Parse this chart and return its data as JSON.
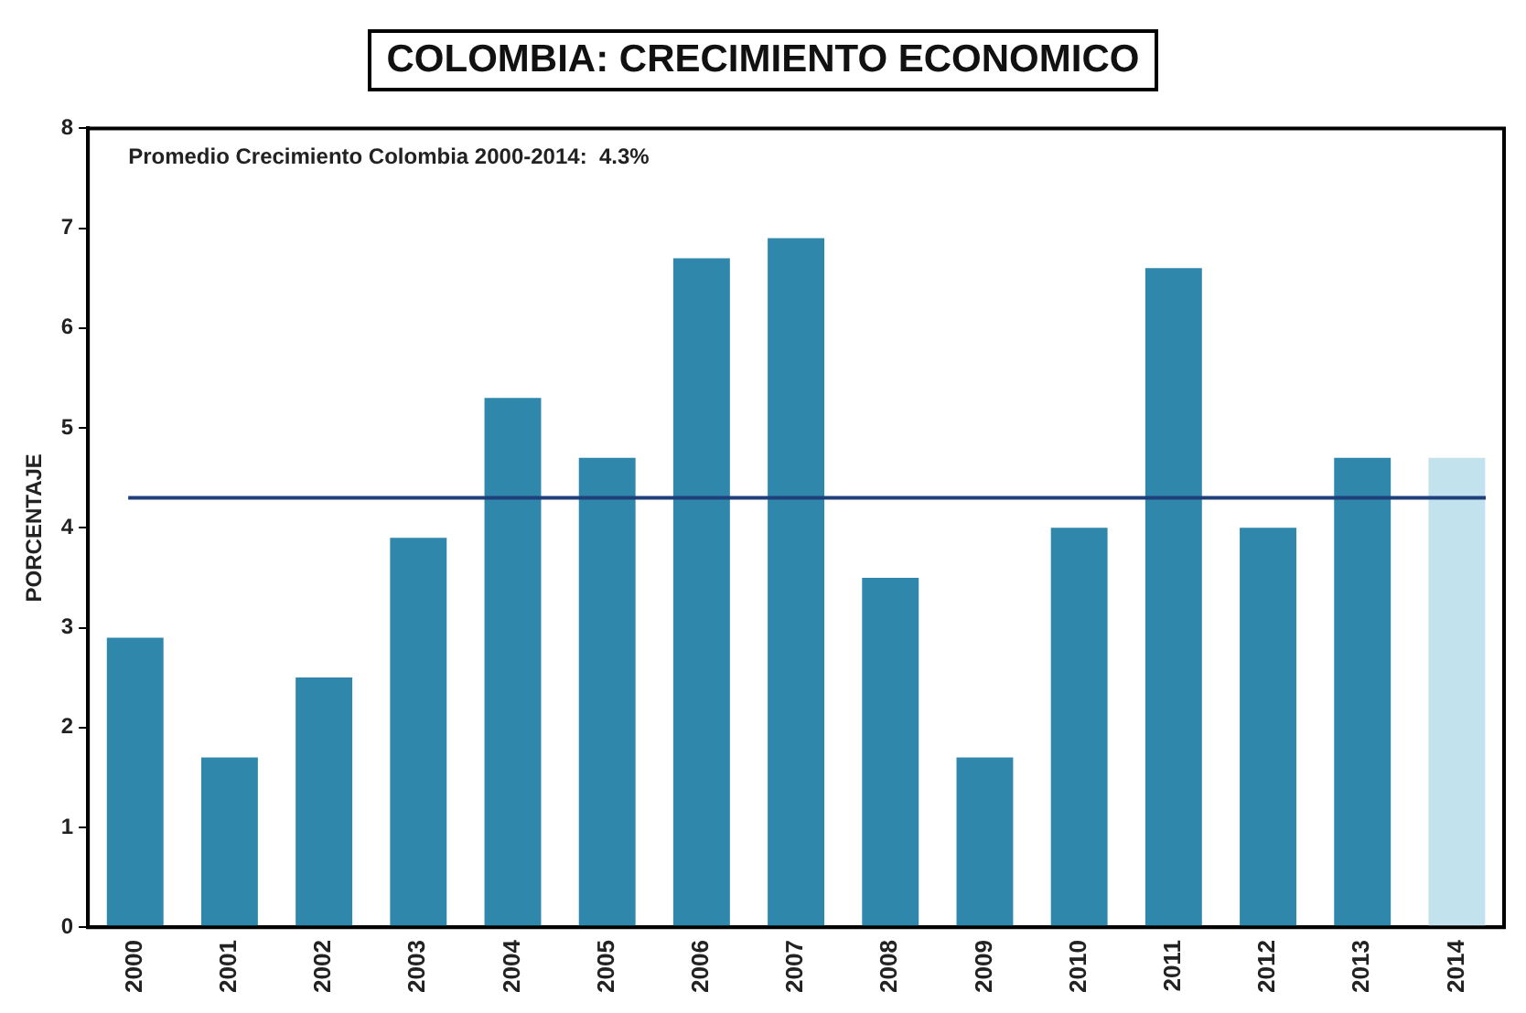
{
  "chart_data": {
    "type": "bar",
    "title": "COLOMBIA: CRECIMIENTO ECONOMICO",
    "ylabel": "PORCENTAJE",
    "categories": [
      "2000",
      "2001",
      "2002",
      "2003",
      "2004",
      "2005",
      "2006",
      "2007",
      "2008",
      "2009",
      "2010",
      "2011",
      "2012",
      "2013",
      "2014"
    ],
    "values": [
      2.9,
      1.7,
      2.5,
      3.9,
      5.3,
      4.7,
      6.7,
      6.9,
      3.5,
      1.7,
      4.0,
      6.6,
      4.0,
      4.7,
      4.7
    ],
    "colors": [
      "#2f88ab",
      "#2f88ab",
      "#2f88ab",
      "#2f88ab",
      "#2f88ab",
      "#2f88ab",
      "#2f88ab",
      "#2f88ab",
      "#2f88ab",
      "#2f88ab",
      "#2f88ab",
      "#2f88ab",
      "#2f88ab",
      "#2f88ab",
      "#c2e2ee"
    ],
    "ylim": [
      0,
      8
    ],
    "yticks": [
      0,
      1,
      2,
      3,
      4,
      5,
      6,
      7,
      8
    ],
    "grid": false,
    "legend": false,
    "ref_lines": [
      {
        "axis": "y",
        "value": 4.3,
        "label": null,
        "color": "#1f3f7a"
      }
    ],
    "annotations": [
      "Promedio Crecimiento Colombia 2000-2014:  4.3%"
    ]
  }
}
